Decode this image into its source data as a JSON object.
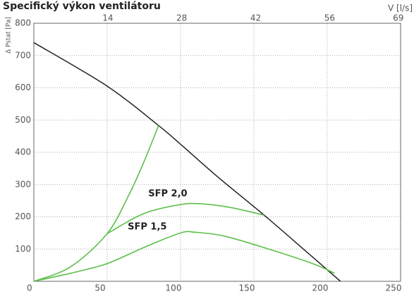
{
  "chart_data": {
    "type": "line",
    "title": "Specifický výkon ventilátoru",
    "ylabel": "Δ Pstat [Pa]",
    "x2label": "V [l/s]",
    "xlim": [
      0,
      250
    ],
    "xticks": [
      0,
      50,
      100,
      150,
      200,
      250
    ],
    "x2lim": [
      0,
      69.44
    ],
    "x2ticks": [
      14,
      28,
      42,
      56,
      69
    ],
    "ylim": [
      0,
      800
    ],
    "yticks": [
      100,
      200,
      300,
      400,
      500,
      600,
      700,
      800
    ],
    "grid": true,
    "annotations": [
      "SFP 2,0",
      "SFP 1,5"
    ],
    "series": [
      {
        "color": "#222222",
        "x": [
          0,
          50,
          85,
          100,
          125,
          157,
          185,
          209
        ],
        "values": [
          740,
          605,
          483,
          425,
          325,
          205,
          95,
          0
        ]
      },
      {
        "color": "#5cbf4a",
        "x": [
          0,
          25,
          50,
          65,
          75,
          85
        ],
        "values": [
          0,
          45,
          148,
          270,
          370,
          483
        ]
      },
      {
        "color": "#5cbf4a",
        "x": [
          50,
          75,
          100,
          115,
          135,
          157
        ],
        "values": [
          148,
          210,
          238,
          240,
          228,
          205
        ]
      },
      {
        "color": "#5cbf4a",
        "x": [
          0,
          25,
          50,
          75,
          100,
          110,
          130,
          160,
          190,
          205
        ],
        "values": [
          0,
          25,
          55,
          105,
          150,
          152,
          140,
          100,
          55,
          25
        ]
      }
    ]
  }
}
